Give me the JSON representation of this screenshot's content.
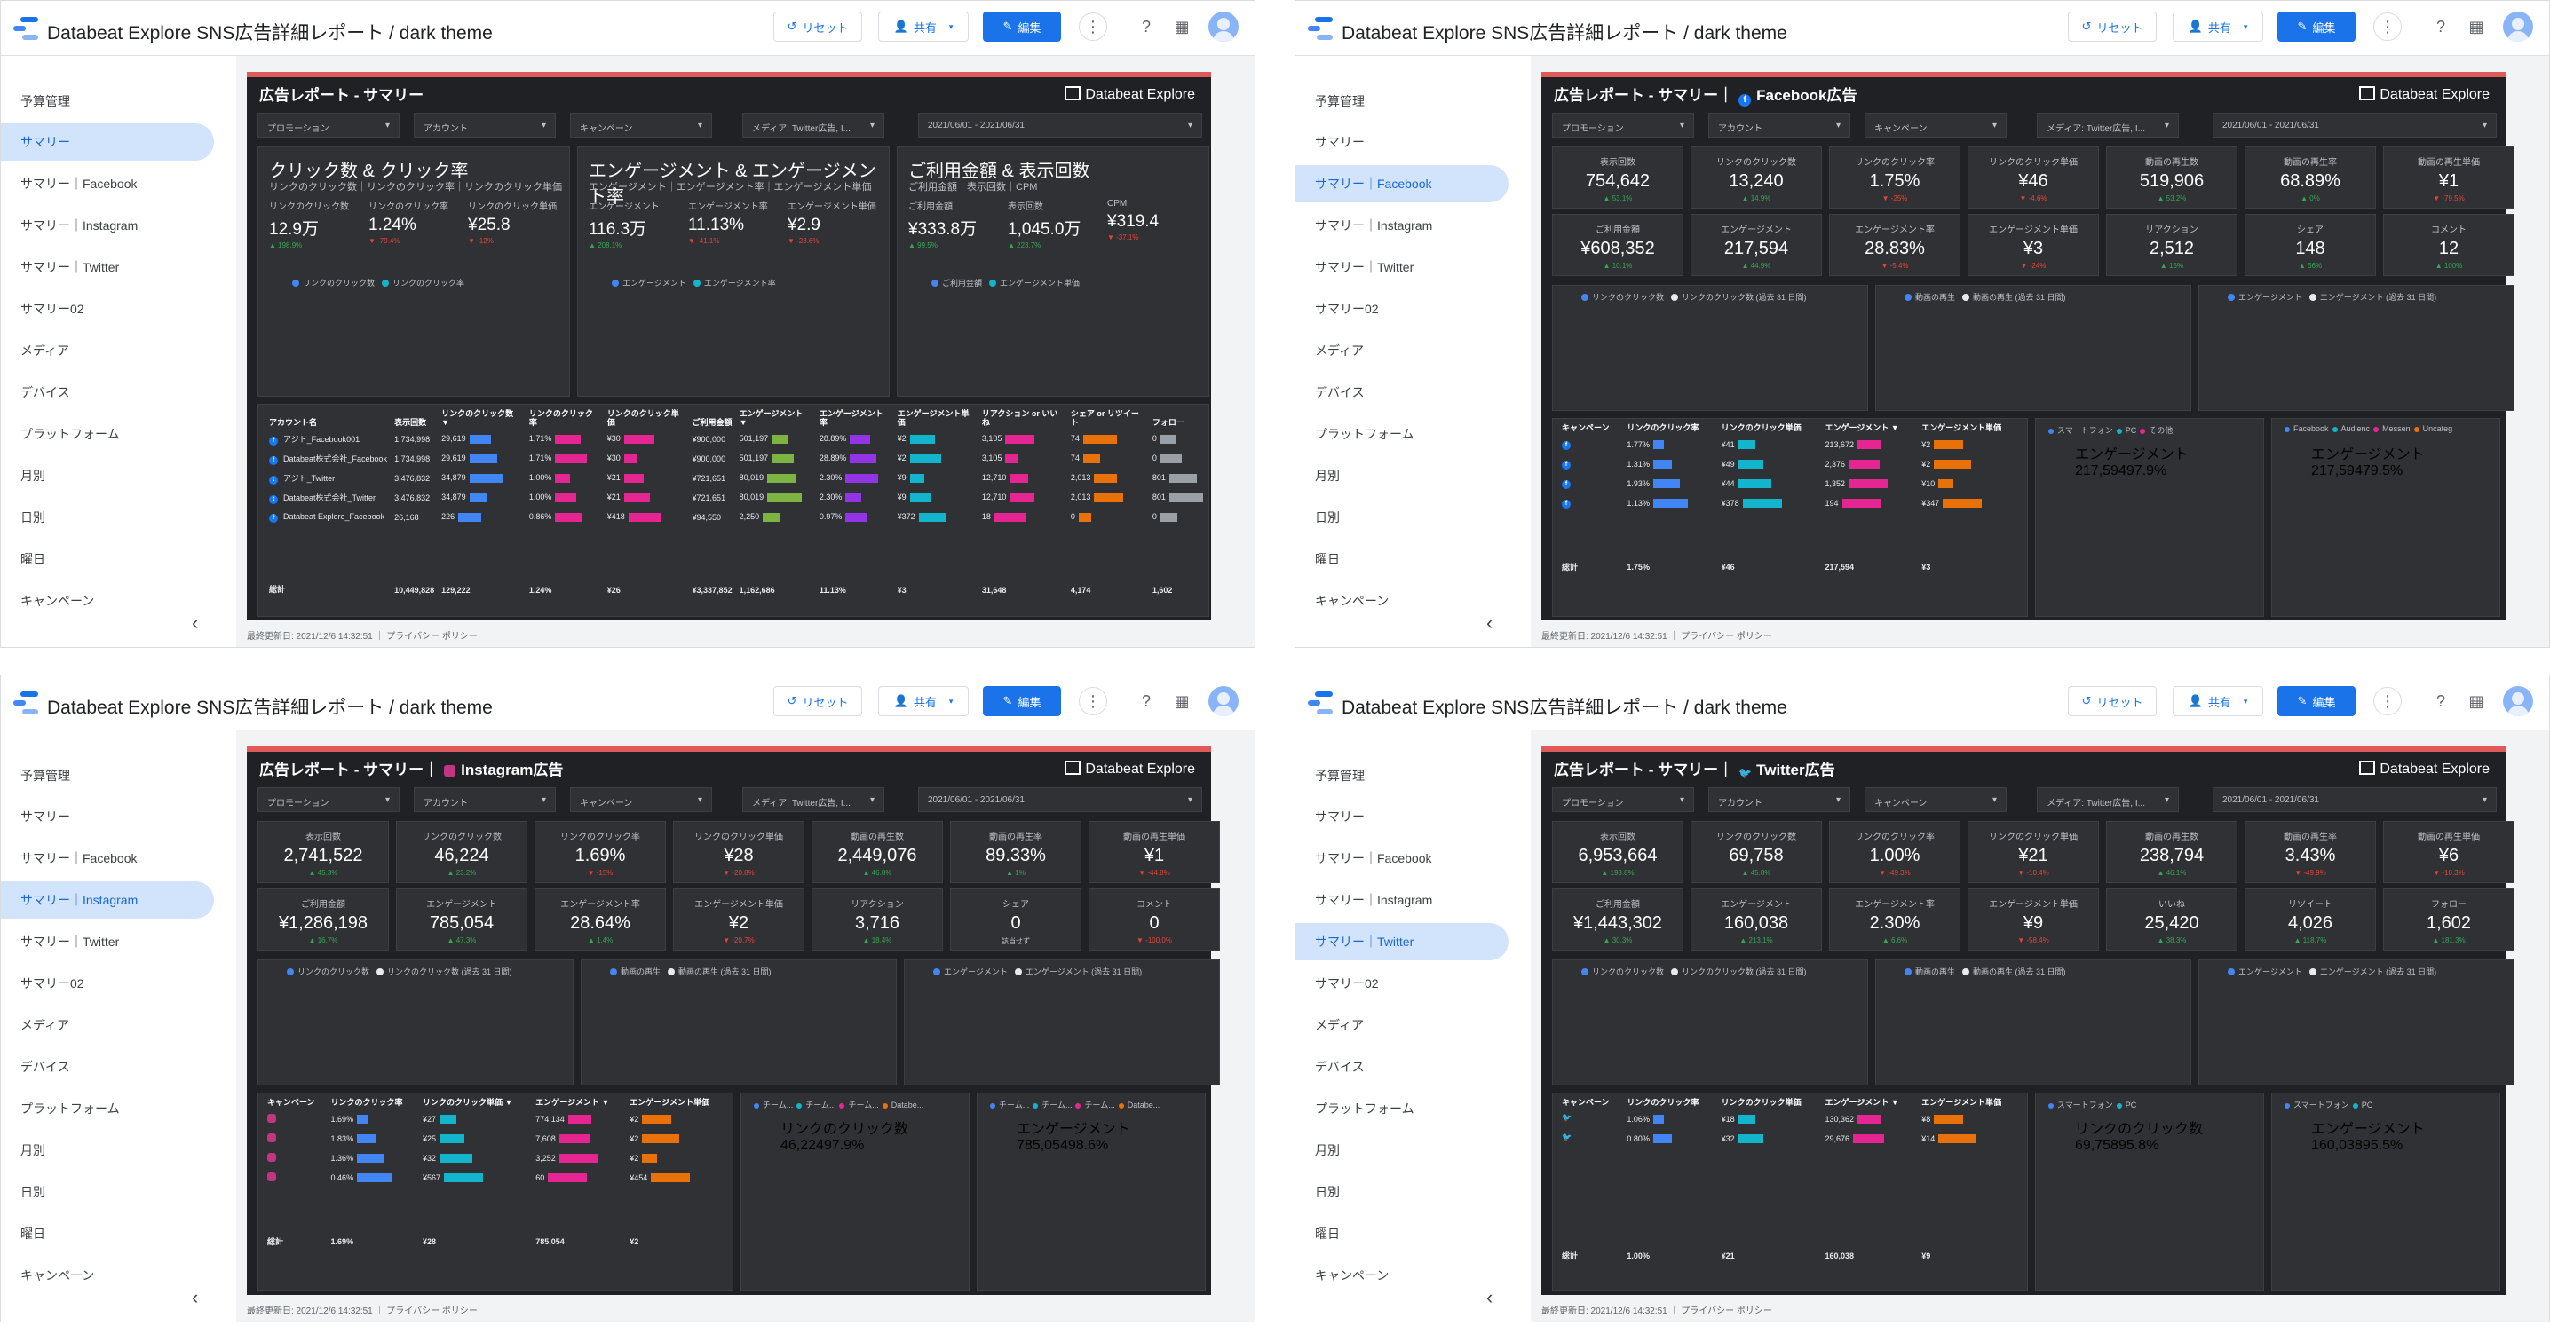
{
  "header": {
    "title": "Databeat Explore SNS広告詳細レポート / dark theme",
    "reset": "リセット",
    "share": "共有",
    "edit": "編集"
  },
  "nav": [
    "予算管理",
    "サマリー",
    "サマリー｜Facebook",
    "サマリー｜Instagram",
    "サマリー｜Twitter",
    "サマリー02",
    "メディア",
    "デバイス",
    "プラットフォーム",
    "月別",
    "日別",
    "曜日",
    "キャンペーン"
  ],
  "footer": "最終更新日: 2021/12/6 14:32:51 ｜ プライバシー ポリシー",
  "brand": "Databeat Explore",
  "filters": {
    "promotion": "プロモーション",
    "account": "アカウント",
    "campaign": "キャンペーン",
    "media": "メディア: Twitter広告, I...",
    "date": "2021/06/01 - 2021/06/31"
  },
  "panels": [
    {
      "title": "広告レポート - サマリー",
      "active": 1,
      "cards": [
        {
          "h": "クリック数 & クリック率",
          "cap": "リンクのクリック数｜リンクのクリック率｜リンクのクリック単価",
          "m": [
            [
              "リンクのクリック数",
              "12.9万",
              "▲ 198.9%"
            ],
            [
              "リンクのクリック率",
              "1.24%",
              "▼ -79.4%"
            ],
            [
              "リンクのクリック単価",
              "¥25.8",
              "▼ -12%"
            ]
          ],
          "lg": [
            "リンクのクリック数",
            "リンクのクリック率"
          ]
        },
        {
          "h": "エンゲージメント & エンゲージメント率",
          "cap": "エンゲージメント｜エンゲージメント率｜エンゲージメント単価",
          "m": [
            [
              "エンゲージメント",
              "116.3万",
              "▲ 208.1%"
            ],
            [
              "エンゲージメント率",
              "11.13%",
              "▼ -41.1%"
            ],
            [
              "エンゲージメント単価",
              "¥2.9",
              "▼ -28.6%"
            ]
          ],
          "lg": [
            "エンゲージメント",
            "エンゲージメント率"
          ]
        },
        {
          "h": "ご利用金額 & 表示回数",
          "cap": "ご利用金額｜表示回数｜CPM",
          "m": [
            [
              "ご利用金額",
              "¥333.8万",
              "▲ 99.5%"
            ],
            [
              "表示回数",
              "1,045.0万",
              "▲ 223.7%"
            ],
            [
              "CPM",
              "¥319.4",
              "▼ -37.1%"
            ]
          ],
          "lg": [
            "ご利用金額",
            "エンゲージメント単価"
          ]
        }
      ],
      "table": {
        "head": [
          "アカウント名",
          "表示回数",
          "リンクのクリック数 ▼",
          "リンクのクリック率",
          "リンクのクリック単価",
          "ご利用金額",
          "エンゲージメント ▼",
          "エンゲージメント率",
          "エンゲージメント単価",
          "リアクション or いいね",
          "シェア or リツイート",
          "フォロー"
        ],
        "rows": [
          [
            "アジト_Facebook001",
            "1,734,998",
            "29,619",
            "1.71%",
            "¥30",
            "¥900,000",
            "501,197",
            "28.89%",
            "¥2",
            "3,105",
            "74",
            "0"
          ],
          [
            "Databeat株式会社_Facebook",
            "1,734,998",
            "29,619",
            "1.71%",
            "¥30",
            "¥900,000",
            "501,197",
            "28.89%",
            "¥2",
            "3,105",
            "74",
            "0"
          ],
          [
            "アジト_Twitter",
            "3,476,832",
            "34,879",
            "1.00%",
            "¥21",
            "¥721,651",
            "80,019",
            "2.30%",
            "¥9",
            "12,710",
            "2,013",
            "801"
          ],
          [
            "Databeat株式会社_Twitter",
            "3,476,832",
            "34,879",
            "1.00%",
            "¥21",
            "¥721,651",
            "80,019",
            "2.30%",
            "¥9",
            "12,710",
            "2,013",
            "801"
          ],
          [
            "Databeat Explore_Facebook",
            "26,168",
            "226",
            "0.86%",
            "¥418",
            "¥94,550",
            "2,250",
            "0.97%",
            "¥372",
            "18",
            "0",
            "0"
          ]
        ],
        "total": [
          "総計",
          "10,449,828",
          "129,222",
          "1.24%",
          "¥26",
          "¥3,337,852",
          "1,162,686",
          "11.13%",
          "¥3",
          "31,648",
          "4,174",
          "1,602"
        ]
      }
    },
    {
      "title": "広告レポート - サマリー｜",
      "sub": "Facebook広告",
      "icon": "fb",
      "active": 2,
      "kpi": [
        [
          "表示回数",
          "754,642",
          "▲ 53.1%"
        ],
        [
          "リンクのクリック数",
          "13,240",
          "▲ 14.9%"
        ],
        [
          "リンクのクリック率",
          "1.75%",
          "▼ -25%"
        ],
        [
          "リンクのクリック単価",
          "¥46",
          "▼ -4.6%"
        ],
        [
          "動画の再生数",
          "519,906",
          "▲ 53.2%"
        ],
        [
          "動画の再生率",
          "68.89%",
          "▲ 0%"
        ],
        [
          "動画の再生単価",
          "¥1",
          "▼ -79.5%"
        ],
        [
          "ご利用金額",
          "¥608,352",
          "▲ 10.1%"
        ],
        [
          "エンゲージメント",
          "217,594",
          "▲ 44.9%"
        ],
        [
          "エンゲージメント率",
          "28.83%",
          "▼ -5.4%"
        ],
        [
          "エンゲージメント単価",
          "¥3",
          "▼ -24%"
        ],
        [
          "リアクション",
          "2,512",
          "▲ 15%"
        ],
        [
          "シェア",
          "148",
          "▲ 56%"
        ],
        [
          "コメント",
          "12",
          "▲ 100%"
        ]
      ],
      "charts": [
        [
          "リンクのクリック数",
          "リンクのクリック数 (過去 31 日間)"
        ],
        [
          "動画の再生",
          "動画の再生 (過去 31 日間)"
        ],
        [
          "エンゲージメント",
          "エンゲージメント (過去 31 日間)"
        ]
      ],
      "table": {
        "head": [
          "キャンペーン",
          "リンクのクリック率",
          "リンクのクリック単価",
          "エンゲージメント ▼",
          "エンゲージメント単価"
        ],
        "rows": [
          [
            "1.77%",
            "¥41",
            "213,672",
            "¥2"
          ],
          [
            "1.31%",
            "¥49",
            "2,376",
            "¥2"
          ],
          [
            "1.93%",
            "¥44",
            "1,352",
            "¥10"
          ],
          [
            "1.13%",
            "¥378",
            "194",
            "¥347"
          ]
        ],
        "total": [
          "総計",
          "1.75%",
          "¥46",
          "217,594",
          "¥3"
        ]
      },
      "donuts": [
        {
          "lg": [
            "スマートフォン",
            "PC",
            "その他"
          ],
          "label": "エンゲージメント",
          "value": "217,594",
          "pct": "97.9%"
        },
        {
          "lg": [
            "Facebook",
            "Audienc",
            "Messen",
            "Uncateg"
          ],
          "label": "エンゲージメント",
          "value": "217,594",
          "pct": "79.5%"
        }
      ]
    },
    {
      "title": "広告レポート - サマリー｜",
      "sub": "Instagram広告",
      "icon": "ig",
      "active": 3,
      "kpi": [
        [
          "表示回数",
          "2,741,522",
          "▲ 45.3%"
        ],
        [
          "リンクのクリック数",
          "46,224",
          "▲ 23.2%"
        ],
        [
          "リンクのクリック率",
          "1.69%",
          "▼ -15%"
        ],
        [
          "リンクのクリック単価",
          "¥28",
          "▼ -20.8%"
        ],
        [
          "動画の再生数",
          "2,449,076",
          "▲ 46.8%"
        ],
        [
          "動画の再生率",
          "89.33%",
          "▲ 1%"
        ],
        [
          "動画の再生単価",
          "¥1",
          "▼ -44.8%"
        ],
        [
          "ご利用金額",
          "¥1,286,198",
          "▲ 16.7%"
        ],
        [
          "エンゲージメント",
          "785,054",
          "▲ 47.3%"
        ],
        [
          "エンゲージメント率",
          "28.64%",
          "▲ 1.4%"
        ],
        [
          "エンゲージメント単価",
          "¥2",
          "▼ -20.7%"
        ],
        [
          "リアクション",
          "3,716",
          "▲ 18.4%"
        ],
        [
          "シェア",
          "0",
          "該当せず"
        ],
        [
          "コメント",
          "0",
          "▼ -100.0%"
        ]
      ],
      "charts": [
        [
          "リンクのクリック数",
          "リンクのクリック数 (過去 31 日間)"
        ],
        [
          "動画の再生",
          "動画の再生 (過去 31 日間)"
        ],
        [
          "エンゲージメント",
          "エンゲージメント (過去 31 日間)"
        ]
      ],
      "table": {
        "head": [
          "キャンペーン",
          "リンクのクリック率",
          "リンクのクリック単価 ▼",
          "エンゲージメント ▼",
          "エンゲージメント単価"
        ],
        "rows": [
          [
            "1.69%",
            "¥27",
            "774,134",
            "¥2"
          ],
          [
            "1.83%",
            "¥25",
            "7,608",
            "¥2"
          ],
          [
            "1.36%",
            "¥32",
            "3,252",
            "¥2"
          ],
          [
            "0.46%",
            "¥567",
            "60",
            "¥454"
          ]
        ],
        "total": [
          "総計",
          "1.69%",
          "¥28",
          "785,054",
          "¥2"
        ]
      },
      "donuts": [
        {
          "lg": [
            "チーム...",
            "チーム...",
            "チーム...",
            "Databe..."
          ],
          "label": "リンクのクリック数",
          "value": "46,224",
          "pct": "97.9%"
        },
        {
          "lg": [
            "チーム...",
            "チーム...",
            "チーム...",
            "Databe..."
          ],
          "label": "エンゲージメント",
          "value": "785,054",
          "pct": "98.6%"
        }
      ]
    },
    {
      "title": "広告レポート - サマリー｜",
      "sub": "Twitter広告",
      "icon": "tw",
      "active": 4,
      "kpi": [
        [
          "表示回数",
          "6,953,664",
          "▲ 193.8%"
        ],
        [
          "リンクのクリック数",
          "69,758",
          "▲ 45.8%"
        ],
        [
          "リンクのクリック率",
          "1.00%",
          "▼ -49.3%"
        ],
        [
          "リンクのクリック単価",
          "¥21",
          "▼ -10.4%"
        ],
        [
          "動画の再生数",
          "238,794",
          "▲ 46.1%"
        ],
        [
          "動画の再生率",
          "3.43%",
          "▼ -49.9%"
        ],
        [
          "動画の再生単価",
          "¥6",
          "▼ -10.3%"
        ],
        [
          "ご利用金額",
          "¥1,443,302",
          "▲ 30.3%"
        ],
        [
          "エンゲージメント",
          "160,038",
          "▲ 213.1%"
        ],
        [
          "エンゲージメント率",
          "2.30%",
          "▲ 6.6%"
        ],
        [
          "エンゲージメント単価",
          "¥9",
          "▼ -58.4%"
        ],
        [
          "いいね",
          "25,420",
          "▲ 38.3%"
        ],
        [
          "リツイート",
          "4,026",
          "▲ 118.7%"
        ],
        [
          "フォロー",
          "1,602",
          "▲ 181.3%"
        ]
      ],
      "charts": [
        [
          "リンクのクリック数",
          "リンクのクリック数 (過去 31 日間)"
        ],
        [
          "動画の再生",
          "動画の再生 (過去 31 日間)"
        ],
        [
          "エンゲージメント",
          "エンゲージメント (過去 31 日間)"
        ]
      ],
      "table": {
        "head": [
          "キャンペーン",
          "リンクのクリック率",
          "リンクのクリック単価",
          "エンゲージメント ▼",
          "エンゲージメント単価"
        ],
        "rows": [
          [
            "1.06%",
            "¥18",
            "130,362",
            "¥8"
          ],
          [
            "0.80%",
            "¥32",
            "29,676",
            "¥14"
          ]
        ],
        "total": [
          "総計",
          "1.00%",
          "¥21",
          "160,038",
          "¥9"
        ]
      },
      "donuts": [
        {
          "lg": [
            "スマートフォン",
            "PC"
          ],
          "label": "リンクのクリック数",
          "value": "69,758",
          "pct": "95.8%"
        },
        {
          "lg": [
            "スマートフォン",
            "PC"
          ],
          "label": "エンゲージメント",
          "value": "160,038",
          "pct": "95.5%"
        }
      ]
    }
  ],
  "colors": {
    "accent": "#1a73e8",
    "blue": "#4285f4",
    "teal": "#12b5cb",
    "pink": "#e52592",
    "orange": "#e8710a",
    "purple": "#9334e6",
    "green": "#7cb342",
    "redbar": "#e05a5a"
  }
}
